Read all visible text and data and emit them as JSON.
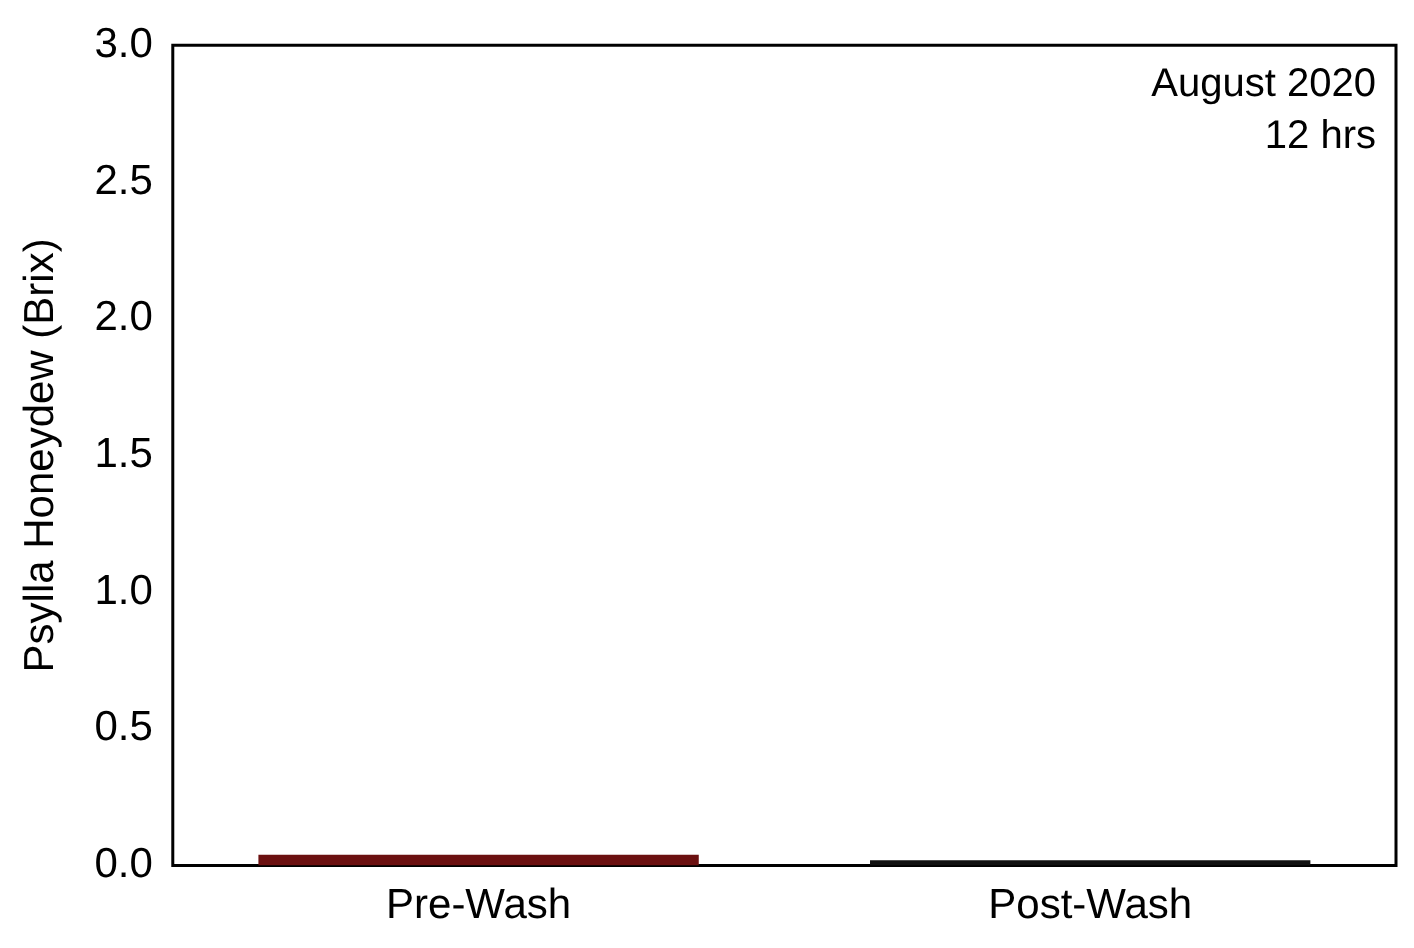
{
  "chart_data": {
    "type": "bar",
    "ylabel": "Psylla Honeydew (Brix)",
    "categories": [
      "Pre-Wash",
      "Post-Wash"
    ],
    "values": [
      0.04,
      0.02
    ],
    "colors": [
      "#6b1010",
      "#111111"
    ],
    "ylim": [
      0,
      3
    ],
    "yticks": [
      {
        "value": 0,
        "label": "0.0"
      },
      {
        "value": 0.5,
        "label": "0.5"
      },
      {
        "value": 1,
        "label": "1.0"
      },
      {
        "value": 1.5,
        "label": "1.5"
      },
      {
        "value": 2,
        "label": "2.0"
      },
      {
        "value": 2.5,
        "label": "2.5"
      },
      {
        "value": 3,
        "label": "3.0"
      }
    ],
    "annotations": [
      "August 2020",
      "12 hrs"
    ],
    "grid": false,
    "legend": false
  }
}
